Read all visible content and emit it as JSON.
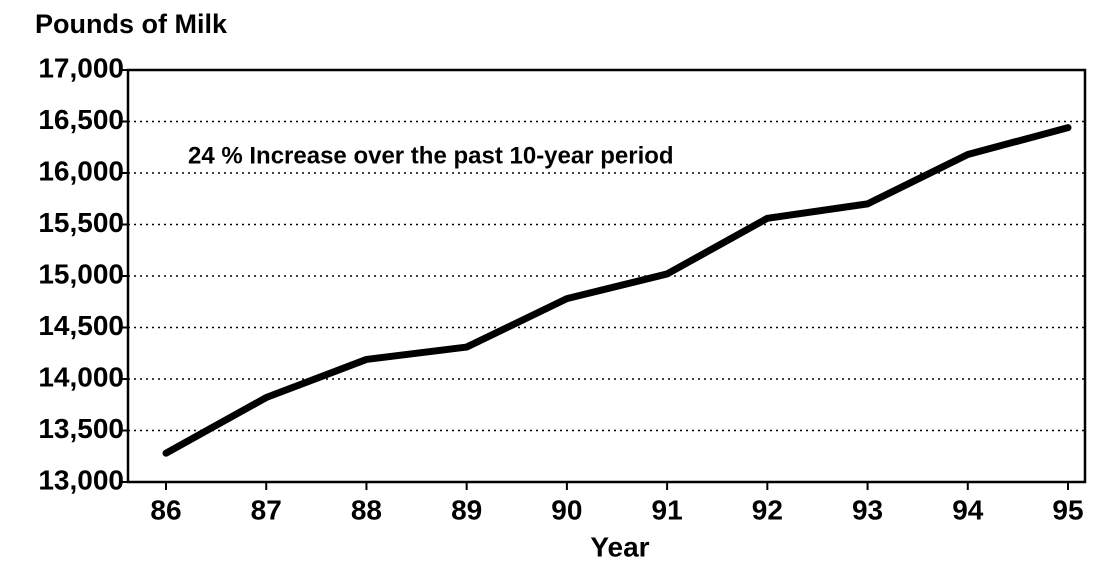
{
  "chart_data": {
    "type": "line",
    "title": "Pounds of Milk",
    "annotation": "24 % Increase over the past 10-year period",
    "x_label": "Year",
    "categories": [
      "86",
      "87",
      "88",
      "89",
      "90",
      "91",
      "92",
      "93",
      "94",
      "95"
    ],
    "series": [
      {
        "name": "Pounds of Milk",
        "color": "#000000",
        "values": [
          13280,
          13820,
          14190,
          14310,
          14780,
          15020,
          15560,
          15700,
          16180,
          16440
        ]
      }
    ],
    "ylim": [
      13000,
      17000
    ],
    "yticks": [
      {
        "value": 13000,
        "label": "13,000"
      },
      {
        "value": 13500,
        "label": "13,500"
      },
      {
        "value": 14000,
        "label": "14,000"
      },
      {
        "value": 14500,
        "label": "14,500"
      },
      {
        "value": 15000,
        "label": "15,000"
      },
      {
        "value": 15500,
        "label": "15,500"
      },
      {
        "value": 16000,
        "label": "16,000"
      },
      {
        "value": 16500,
        "label": "16,500"
      },
      {
        "value": 17000,
        "label": "17,000"
      }
    ],
    "grid": true
  }
}
